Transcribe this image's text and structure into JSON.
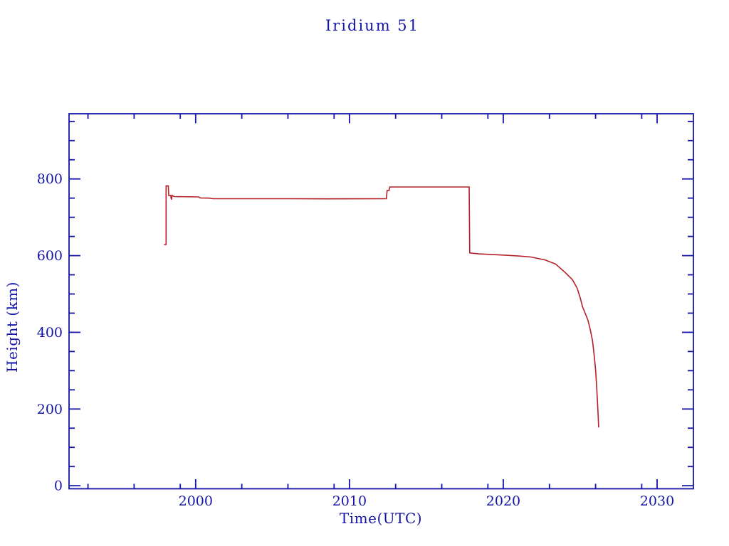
{
  "colors": {
    "axis": "#1414a8",
    "series_line": "#b42025",
    "background": "#ffffff"
  },
  "chart_data": {
    "type": "line",
    "title": "Iridium 51",
    "xlabel": "Time(UTC)",
    "ylabel": "Height (km)",
    "xlim": [
      1991.77,
      2032.36
    ],
    "ylim": [
      -8,
      970
    ],
    "grid": false,
    "legend": "none",
    "x_major_ticks": [
      {
        "value": 2000,
        "label": "2000"
      },
      {
        "value": 2010,
        "label": "2010"
      },
      {
        "value": 2020,
        "label": "2020"
      },
      {
        "value": 2030,
        "label": "2030"
      }
    ],
    "x_minor_ticks": [
      1993,
      1996,
      1999,
      2003,
      2006,
      2009,
      2013,
      2016,
      2019,
      2023,
      2026,
      2029
    ],
    "y_major_ticks": [
      {
        "value": 0,
        "label": "0"
      },
      {
        "value": 200,
        "label": "200"
      },
      {
        "value": 400,
        "label": "400"
      },
      {
        "value": 600,
        "label": "600"
      },
      {
        "value": 800,
        "label": "800"
      }
    ],
    "y_minor_step": 50,
    "y_minor_max": 950,
    "series": [
      {
        "name": "height-km",
        "color": "#b42025",
        "points": [
          [
            1997.95,
            629
          ],
          [
            1998.08,
            629
          ],
          [
            1998.08,
            782
          ],
          [
            1998.22,
            782
          ],
          [
            1998.25,
            757
          ],
          [
            1998.38,
            757
          ],
          [
            1998.42,
            746
          ],
          [
            1998.47,
            757
          ],
          [
            1998.6,
            754
          ],
          [
            2000.2,
            753
          ],
          [
            2000.3,
            750.5
          ],
          [
            2000.9,
            750
          ],
          [
            2001.1,
            748.5
          ],
          [
            2006.0,
            748.5
          ],
          [
            2008.5,
            748
          ],
          [
            2012.4,
            748.5
          ],
          [
            2012.45,
            770
          ],
          [
            2012.58,
            770
          ],
          [
            2012.62,
            779
          ],
          [
            2017.78,
            779
          ],
          [
            2017.82,
            607
          ],
          [
            2018.4,
            604.5
          ],
          [
            2019.2,
            603
          ],
          [
            2020.0,
            601.5
          ],
          [
            2021.0,
            599
          ],
          [
            2021.8,
            596.5
          ],
          [
            2022.7,
            589
          ],
          [
            2023.4,
            578
          ],
          [
            2024.0,
            557
          ],
          [
            2024.5,
            537
          ],
          [
            2024.8,
            515
          ],
          [
            2025.0,
            490
          ],
          [
            2025.15,
            467
          ],
          [
            2025.3,
            452
          ],
          [
            2025.5,
            432
          ],
          [
            2025.65,
            408
          ],
          [
            2025.8,
            378
          ],
          [
            2025.9,
            344
          ],
          [
            2026.0,
            303
          ],
          [
            2026.07,
            258
          ],
          [
            2026.12,
            220
          ],
          [
            2026.17,
            180
          ],
          [
            2026.2,
            152
          ]
        ]
      }
    ]
  }
}
